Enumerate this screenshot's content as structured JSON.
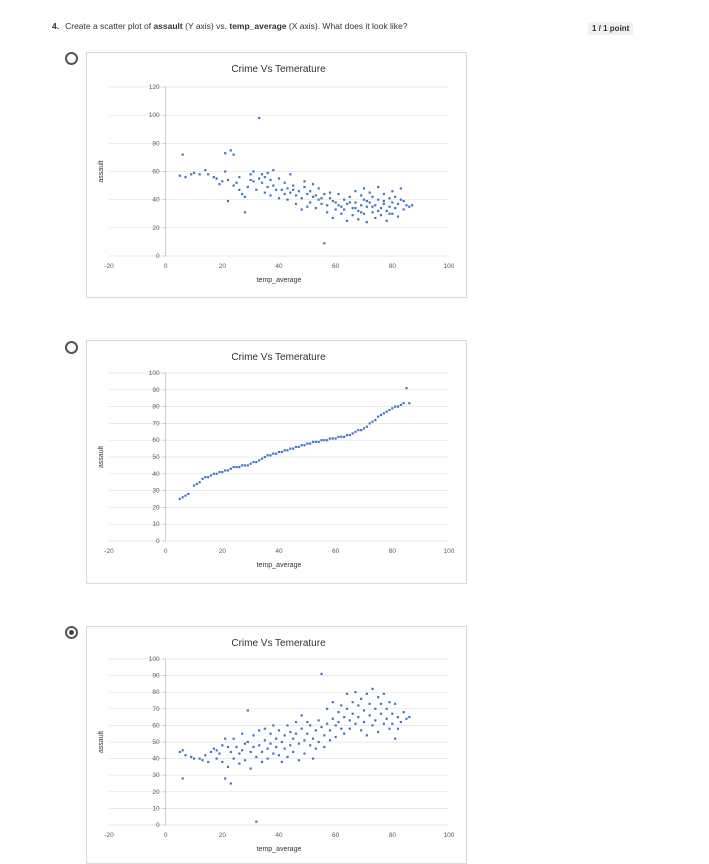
{
  "question": {
    "number": "4.",
    "text_before": "Create a scatter plot of ",
    "bold1": "assault",
    "text_mid1": " (Y axis) vs. ",
    "bold2": "temp_average",
    "text_mid2": " (X axis). What does it look like?",
    "points": "1 / 1 point"
  },
  "options": [
    {
      "selected": false
    },
    {
      "selected": false
    },
    {
      "selected": true
    }
  ],
  "colors": {
    "marker": "#4472C4",
    "grid": "#e2e2e2",
    "axis": "#bfbfbf"
  },
  "chart_data": [
    {
      "type": "scatter",
      "title": "Crime Vs Temerature",
      "xlabel": "temp_average",
      "ylabel": "assault",
      "xlim": [
        -20,
        100
      ],
      "ylim": [
        0,
        120
      ],
      "xticks": [
        -20,
        0,
        20,
        40,
        60,
        80,
        100
      ],
      "yticks": [
        0,
        20,
        40,
        60,
        80,
        100,
        120
      ],
      "grid": true,
      "points": [
        [
          6,
          72
        ],
        [
          5,
          57
        ],
        [
          7,
          56
        ],
        [
          9,
          58
        ],
        [
          10,
          59
        ],
        [
          12,
          58
        ],
        [
          14,
          61
        ],
        [
          15,
          58
        ],
        [
          17,
          56
        ],
        [
          18,
          55
        ],
        [
          19,
          51
        ],
        [
          20,
          53
        ],
        [
          21,
          60
        ],
        [
          21,
          73
        ],
        [
          22,
          54
        ],
        [
          22,
          39
        ],
        [
          23,
          75
        ],
        [
          24,
          72
        ],
        [
          24,
          50
        ],
        [
          25,
          52
        ],
        [
          26,
          47
        ],
        [
          27,
          44
        ],
        [
          28,
          31
        ],
        [
          28,
          42
        ],
        [
          29,
          49
        ],
        [
          30,
          58
        ],
        [
          30,
          54
        ],
        [
          31,
          53
        ],
        [
          32,
          47
        ],
        [
          33,
          55
        ],
        [
          33,
          98
        ],
        [
          34,
          58
        ],
        [
          34,
          52
        ],
        [
          35,
          56
        ],
        [
          35,
          45
        ],
        [
          36,
          59
        ],
        [
          36,
          49
        ],
        [
          37,
          43
        ],
        [
          38,
          61
        ],
        [
          38,
          50
        ],
        [
          39,
          47
        ],
        [
          40,
          55
        ],
        [
          40,
          41
        ],
        [
          41,
          47
        ],
        [
          42,
          52
        ],
        [
          42,
          44
        ],
        [
          43,
          48
        ],
        [
          43,
          40
        ],
        [
          44,
          58
        ],
        [
          44,
          45
        ],
        [
          45,
          50
        ],
        [
          46,
          43
        ],
        [
          46,
          37
        ],
        [
          47,
          46
        ],
        [
          48,
          41
        ],
        [
          48,
          33
        ],
        [
          49,
          49
        ],
        [
          50,
          44
        ],
        [
          50,
          35
        ],
        [
          51,
          38
        ],
        [
          52,
          51
        ],
        [
          52,
          42
        ],
        [
          53,
          34
        ],
        [
          54,
          48
        ],
        [
          54,
          40
        ],
        [
          55,
          37
        ],
        [
          56,
          9
        ],
        [
          56,
          44
        ],
        [
          57,
          36
        ],
        [
          57,
          31
        ],
        [
          58,
          45
        ],
        [
          58,
          41
        ],
        [
          59,
          27
        ],
        [
          60,
          38
        ],
        [
          60,
          33
        ],
        [
          61,
          44
        ],
        [
          62,
          35
        ],
        [
          62,
          30
        ],
        [
          63,
          40
        ],
        [
          64,
          37
        ],
        [
          64,
          25
        ],
        [
          65,
          42
        ],
        [
          66,
          34
        ],
        [
          66,
          29
        ],
        [
          67,
          46
        ],
        [
          67,
          38
        ],
        [
          68,
          32
        ],
        [
          68,
          26
        ],
        [
          69,
          43
        ],
        [
          69,
          36
        ],
        [
          70,
          48
        ],
        [
          70,
          40
        ],
        [
          70,
          30
        ],
        [
          71,
          35
        ],
        [
          71,
          24
        ],
        [
          72,
          45
        ],
        [
          72,
          38
        ],
        [
          73,
          31
        ],
        [
          73,
          42
        ],
        [
          74,
          36
        ],
        [
          74,
          27
        ],
        [
          75,
          49
        ],
        [
          75,
          40
        ],
        [
          76,
          34
        ],
        [
          76,
          29
        ],
        [
          77,
          44
        ],
        [
          77,
          37
        ],
        [
          78,
          32
        ],
        [
          78,
          25
        ],
        [
          79,
          41
        ],
        [
          79,
          35
        ],
        [
          80,
          46
        ],
        [
          80,
          38
        ],
        [
          80,
          30
        ],
        [
          81,
          42
        ],
        [
          81,
          34
        ],
        [
          82,
          28
        ],
        [
          82,
          37
        ],
        [
          83,
          48
        ],
        [
          83,
          40
        ],
        [
          84,
          33
        ],
        [
          85,
          36
        ],
        [
          86,
          35
        ],
        [
          87,
          36
        ],
        [
          26,
          56
        ],
        [
          31,
          60
        ],
        [
          37,
          54
        ],
        [
          45,
          47
        ],
        [
          49,
          53
        ],
        [
          51,
          46
        ],
        [
          53,
          43
        ],
        [
          55,
          41
        ],
        [
          59,
          39
        ],
        [
          61,
          36
        ],
        [
          63,
          33
        ],
        [
          65,
          38
        ],
        [
          67,
          34
        ],
        [
          69,
          31
        ],
        [
          71,
          39
        ],
        [
          73,
          35
        ],
        [
          75,
          32
        ],
        [
          77,
          39
        ],
        [
          79,
          30
        ],
        [
          84,
          39
        ]
      ]
    },
    {
      "type": "scatter",
      "title": "Crime Vs Temerature",
      "xlabel": "temp_average",
      "ylabel": "assault",
      "xlim": [
        -20,
        100
      ],
      "ylim": [
        0,
        100
      ],
      "xticks": [
        -20,
        0,
        20,
        40,
        60,
        80,
        100
      ],
      "yticks": [
        0,
        10,
        20,
        30,
        40,
        50,
        60,
        70,
        80,
        90,
        100
      ],
      "grid": true,
      "points": [
        [
          5,
          25
        ],
        [
          6,
          26
        ],
        [
          7,
          27
        ],
        [
          8,
          28
        ],
        [
          10,
          33
        ],
        [
          11,
          34
        ],
        [
          12,
          35
        ],
        [
          13,
          37
        ],
        [
          14,
          38
        ],
        [
          15,
          38
        ],
        [
          16,
          39
        ],
        [
          17,
          40
        ],
        [
          18,
          40
        ],
        [
          19,
          41
        ],
        [
          20,
          41
        ],
        [
          21,
          42
        ],
        [
          22,
          42
        ],
        [
          23,
          43
        ],
        [
          24,
          44
        ],
        [
          25,
          44
        ],
        [
          26,
          44
        ],
        [
          27,
          45
        ],
        [
          28,
          45
        ],
        [
          29,
          45
        ],
        [
          30,
          46
        ],
        [
          31,
          47
        ],
        [
          32,
          47
        ],
        [
          33,
          48
        ],
        [
          34,
          49
        ],
        [
          35,
          50
        ],
        [
          36,
          51
        ],
        [
          37,
          51
        ],
        [
          38,
          52
        ],
        [
          39,
          52
        ],
        [
          40,
          53
        ],
        [
          41,
          53
        ],
        [
          42,
          54
        ],
        [
          43,
          54
        ],
        [
          44,
          55
        ],
        [
          45,
          55
        ],
        [
          46,
          56
        ],
        [
          47,
          56
        ],
        [
          48,
          57
        ],
        [
          49,
          57
        ],
        [
          50,
          58
        ],
        [
          51,
          58
        ],
        [
          52,
          59
        ],
        [
          53,
          59
        ],
        [
          54,
          59
        ],
        [
          55,
          60
        ],
        [
          56,
          60
        ],
        [
          57,
          60
        ],
        [
          58,
          61
        ],
        [
          59,
          61
        ],
        [
          60,
          61
        ],
        [
          61,
          62
        ],
        [
          62,
          62
        ],
        [
          63,
          62
        ],
        [
          64,
          63
        ],
        [
          65,
          63
        ],
        [
          66,
          64
        ],
        [
          67,
          65
        ],
        [
          68,
          66
        ],
        [
          69,
          66
        ],
        [
          70,
          67
        ],
        [
          71,
          68
        ],
        [
          72,
          70
        ],
        [
          73,
          71
        ],
        [
          74,
          72
        ],
        [
          75,
          74
        ],
        [
          76,
          75
        ],
        [
          77,
          76
        ],
        [
          78,
          77
        ],
        [
          79,
          78
        ],
        [
          80,
          79
        ],
        [
          81,
          80
        ],
        [
          82,
          80
        ],
        [
          83,
          81
        ],
        [
          84,
          82
        ],
        [
          85,
          91
        ],
        [
          86,
          82
        ]
      ]
    },
    {
      "type": "scatter",
      "title": "Crime Vs Temerature",
      "xlabel": "temp_average",
      "ylabel": "assault",
      "xlim": [
        -20,
        100
      ],
      "ylim": [
        0,
        100
      ],
      "xticks": [
        -20,
        0,
        20,
        40,
        60,
        80,
        100
      ],
      "yticks": [
        0,
        10,
        20,
        30,
        40,
        50,
        60,
        70,
        80,
        90,
        100
      ],
      "grid": true,
      "points": [
        [
          5,
          44
        ],
        [
          6,
          45
        ],
        [
          6,
          28
        ],
        [
          7,
          42
        ],
        [
          9,
          41
        ],
        [
          10,
          40
        ],
        [
          12,
          40
        ],
        [
          13,
          39
        ],
        [
          14,
          42
        ],
        [
          15,
          38
        ],
        [
          16,
          44
        ],
        [
          17,
          46
        ],
        [
          18,
          45
        ],
        [
          18,
          40
        ],
        [
          19,
          43
        ],
        [
          20,
          48
        ],
        [
          20,
          38
        ],
        [
          21,
          52
        ],
        [
          21,
          28
        ],
        [
          22,
          47
        ],
        [
          22,
          35
        ],
        [
          23,
          25
        ],
        [
          23,
          44
        ],
        [
          24,
          52
        ],
        [
          24,
          40
        ],
        [
          25,
          47
        ],
        [
          26,
          43
        ],
        [
          26,
          37
        ],
        [
          27,
          55
        ],
        [
          27,
          45
        ],
        [
          28,
          49
        ],
        [
          28,
          39
        ],
        [
          29,
          69
        ],
        [
          29,
          50
        ],
        [
          30,
          44
        ],
        [
          30,
          34
        ],
        [
          31,
          54
        ],
        [
          31,
          47
        ],
        [
          32,
          41
        ],
        [
          32,
          2
        ],
        [
          33,
          57
        ],
        [
          33,
          48
        ],
        [
          34,
          44
        ],
        [
          34,
          38
        ],
        [
          35,
          58
        ],
        [
          35,
          51
        ],
        [
          36,
          46
        ],
        [
          36,
          40
        ],
        [
          37,
          55
        ],
        [
          37,
          49
        ],
        [
          38,
          43
        ],
        [
          38,
          60
        ],
        [
          39,
          52
        ],
        [
          39,
          47
        ],
        [
          40,
          42
        ],
        [
          40,
          57
        ],
        [
          41,
          50
        ],
        [
          41,
          38
        ],
        [
          42,
          54
        ],
        [
          42,
          46
        ],
        [
          43,
          60
        ],
        [
          43,
          41
        ],
        [
          44,
          56
        ],
        [
          44,
          48
        ],
        [
          45,
          52
        ],
        [
          45,
          44
        ],
        [
          46,
          62
        ],
        [
          46,
          55
        ],
        [
          47,
          49
        ],
        [
          47,
          39
        ],
        [
          48,
          66
        ],
        [
          48,
          58
        ],
        [
          49,
          51
        ],
        [
          49,
          43
        ],
        [
          50,
          62
        ],
        [
          50,
          55
        ],
        [
          51,
          48
        ],
        [
          51,
          60
        ],
        [
          52,
          52
        ],
        [
          52,
          40
        ],
        [
          53,
          57
        ],
        [
          53,
          46
        ],
        [
          54,
          63
        ],
        [
          54,
          50
        ],
        [
          55,
          59
        ],
        [
          55,
          91
        ],
        [
          56,
          54
        ],
        [
          56,
          47
        ],
        [
          57,
          61
        ],
        [
          57,
          70
        ],
        [
          58,
          57
        ],
        [
          58,
          51
        ],
        [
          59,
          74
        ],
        [
          59,
          64
        ],
        [
          60,
          60
        ],
        [
          60,
          53
        ],
        [
          61,
          68
        ],
        [
          61,
          62
        ],
        [
          62,
          58
        ],
        [
          62,
          72
        ],
        [
          63,
          65
        ],
        [
          63,
          55
        ],
        [
          64,
          79
        ],
        [
          64,
          70
        ],
        [
          65,
          63
        ],
        [
          65,
          58
        ],
        [
          66,
          74
        ],
        [
          66,
          67
        ],
        [
          67,
          80
        ],
        [
          67,
          61
        ],
        [
          68,
          72
        ],
        [
          68,
          65
        ],
        [
          69,
          57
        ],
        [
          69,
          76
        ],
        [
          70,
          69
        ],
        [
          70,
          62
        ],
        [
          71,
          79
        ],
        [
          71,
          54
        ],
        [
          72,
          73
        ],
        [
          72,
          66
        ],
        [
          73,
          82
        ],
        [
          73,
          60
        ],
        [
          74,
          70
        ],
        [
          74,
          63
        ],
        [
          75,
          77
        ],
        [
          75,
          56
        ],
        [
          76,
          67
        ],
        [
          76,
          73
        ],
        [
          77,
          61
        ],
        [
          77,
          79
        ],
        [
          78,
          70
        ],
        [
          78,
          64
        ],
        [
          79,
          58
        ],
        [
          79,
          74
        ],
        [
          80,
          67
        ],
        [
          80,
          61
        ],
        [
          81,
          73
        ],
        [
          81,
          52
        ],
        [
          82,
          65
        ],
        [
          82,
          58
        ],
        [
          83,
          62
        ],
        [
          84,
          68
        ],
        [
          85,
          64
        ],
        [
          86,
          65
        ]
      ]
    }
  ]
}
